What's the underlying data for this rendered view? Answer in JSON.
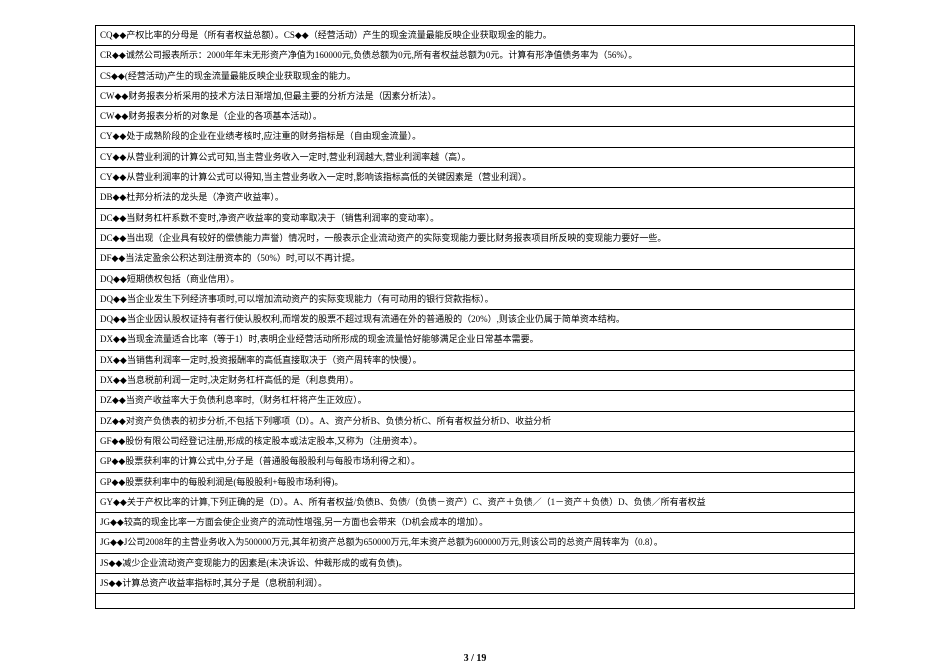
{
  "table": {
    "border_color": "#000000",
    "background_color": "#ffffff",
    "text_color": "#000000",
    "font_size": 9,
    "rows": [
      "CQ◆◆产权比率的分母是（所有者权益总额）。CS◆◆（经营活动）产生的现金流量最能反映企业获取现金的能力。",
      "CR◆◆诚然公司报表所示：2000年年末无形资产净值为160000元,负债总额为0元,所有者权益总额为0元。计算有形净值债务率为（56%）。",
      "CS◆◆(经营活动)产生的现金流量最能反映企业获取现金的能力。",
      "CW◆◆财务报表分析采用的技术方法日渐增加,但最主要的分析方法是（因素分析法）。",
      "CW◆◆财务报表分析的对象是（企业的各项基本活动）。",
      "CY◆◆处于成熟阶段的企业在业绩考核时,应注重的财务指标是（自由现金流量）。",
      "CY◆◆从营业利润的计算公式可知,当主营业务收入一定时,营业利润越大,营业利润率越（高）。",
      "CY◆◆从营业利润率的计算公式可以得知,当主营业务收入一定时,影响该指标高低的关键因素是（营业利润）。",
      "DB◆◆杜邦分析法的龙头是（净资产收益率）。",
      "DC◆◆当财务杠杆系数不变时,净资产收益率的变动率取决于（销售利润率的变动率）。",
      "DC◆◆当出现（企业具有较好的偿债能力声誉）情况时，一般表示企业流动资产的实际变现能力要比财务报表项目所反映的变现能力要好一些。",
      "DF◆◆当法定盈余公积达到注册资本的（50%）时,可以不再计提。",
      "DQ◆◆短期债权包括（商业信用）。",
      "DQ◆◆当企业发生下列经济事项时,可以增加流动资产的实际变现能力（有可动用的银行贷款指标）。",
      "DQ◆◆当企业因认股权证持有者行使认股权利,而增发的股票不超过现有流通在外的普通股的（20%）,则该企业仍属于简单资本结构。",
      "DX◆◆当现金流量适合比率（等于1）时,表明企业经营活动所形成的现金流量恰好能够满足企业日常基本需要。",
      "DX◆◆当销售利润率一定时,投资报酬率的高低直接取决于（资产周转率的快慢）。",
      "DX◆◆当息税前利润一定时,决定财务杠杆高低的是（利息费用）。",
      "DZ◆◆当资产收益率大于负债利息率时,（财务杠杆将产生正效应）。",
      "DZ◆◆对资产负债表的初步分析,不包括下列哪项（D）。A、资产分析B、负债分析C、所有者权益分析D、收益分析",
      "GF◆◆股份有限公司经登记注册,形成的核定股本或法定股本,又称为（注册资本）。",
      "GP◆◆股票获利率的计算公式中,分子是（普通股每股股利与每股市场利得之和）。",
      "GP◆◆股票获利率中的每股利润是(每股股利+每股市场利得)。",
      "GY◆◆关于产权比率的计算,下列正确的是（D）。A、所有者权益/负债B、负债/（负债－资产）C、资产＋负债／（1－资产＋负债）D、负债／所有者权益",
      "JG◆◆较高的现金比率一方面会使企业资产的流动性增强,另一方面也会带来（D机会成本的增加）。",
      "JG◆◆J公司2008年的主营业务收入为500000万元,其年初资产总额为650000万元,年末资产总额为600000万元,则该公司的总资产周转率为（0.8）。",
      "JS◆◆减少企业流动资产变现能力的因素是(未决诉讼、仲裁形成的或有负债)。",
      "JS◆◆计算总资产收益率指标时,其分子是（息税前利润）。",
      ""
    ]
  },
  "footer": {
    "current_page": 3,
    "total_pages": 19,
    "separator": "/"
  }
}
